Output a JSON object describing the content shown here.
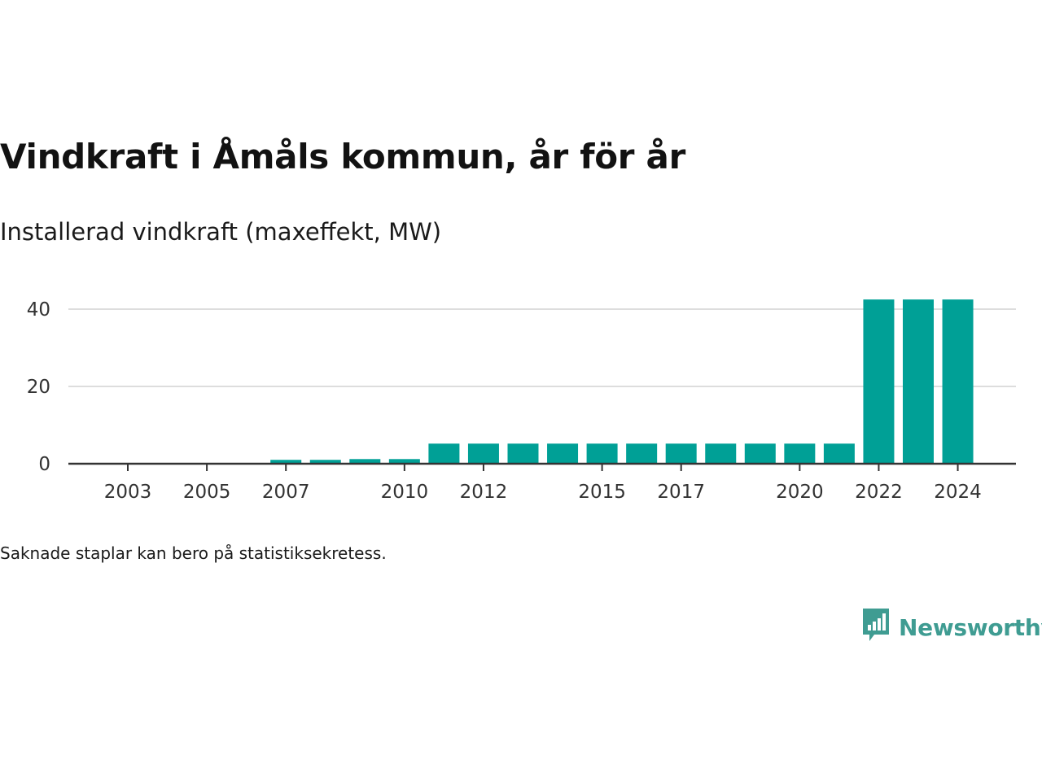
{
  "title": "Vindkraft i Åmåls kommun, år för år",
  "subtitle": "Installerad vindkraft (maxeffekt, MW)",
  "note": "Saknade staplar kan bero på statistiksekretess.",
  "brand": {
    "name": "Newsworthy",
    "icon": "newsworthy-logo-icon",
    "color": "#3f9c92"
  },
  "chart_data": {
    "type": "bar",
    "title": "Vindkraft i Åmåls kommun, år för år",
    "subtitle": "Installerad vindkraft (maxeffekt, MW)",
    "categories": [
      2003,
      2004,
      2005,
      2006,
      2007,
      2008,
      2009,
      2010,
      2011,
      2012,
      2013,
      2014,
      2015,
      2016,
      2017,
      2018,
      2019,
      2020,
      2021,
      2022,
      2023,
      2024
    ],
    "values": [
      0,
      0,
      0,
      0,
      1,
      1,
      1.2,
      1.2,
      5.2,
      5.2,
      5.2,
      5.2,
      5.2,
      5.2,
      5.2,
      5.2,
      5.2,
      5.2,
      5.2,
      42.5,
      42.5,
      42.5
    ],
    "x_ticks": [
      "2003",
      "2005",
      "2007",
      "2010",
      "2012",
      "2015",
      "2017",
      "2020",
      "2022",
      "2024"
    ],
    "y_ticks": [
      "0",
      "20",
      "40"
    ],
    "ylim": [
      0,
      45
    ],
    "grid": true,
    "bar_color": "#00a096",
    "grid_color": "#dddddd",
    "axis_color": "#333333"
  }
}
